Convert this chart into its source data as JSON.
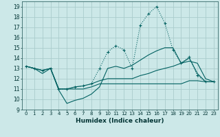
{
  "xlabel": "Humidex (Indice chaleur)",
  "background_color": "#cce8e8",
  "grid_color": "#aacccc",
  "line_color": "#006060",
  "xlim": [
    -0.5,
    23.5
  ],
  "ylim": [
    9,
    19.5
  ],
  "xticks": [
    0,
    1,
    2,
    3,
    4,
    5,
    6,
    7,
    8,
    9,
    10,
    11,
    12,
    13,
    14,
    15,
    16,
    17,
    18,
    19,
    20,
    21,
    22,
    23
  ],
  "yticks": [
    9,
    10,
    11,
    12,
    13,
    14,
    15,
    16,
    17,
    18,
    19
  ],
  "hours": [
    0,
    1,
    2,
    3,
    4,
    5,
    6,
    7,
    8,
    9,
    10,
    11,
    12,
    13,
    14,
    15,
    16,
    17,
    18,
    19,
    20,
    21,
    22,
    23
  ],
  "line_peak": [
    13.2,
    13.0,
    12.8,
    13.0,
    11.0,
    11.0,
    11.2,
    11.3,
    11.5,
    13.0,
    14.6,
    15.2,
    14.8,
    13.0,
    17.2,
    18.3,
    19.0,
    17.4,
    14.8,
    13.5,
    14.1,
    12.3,
    11.7,
    11.7
  ],
  "line_high": [
    13.2,
    13.0,
    12.8,
    13.0,
    10.9,
    9.6,
    9.9,
    10.1,
    10.5,
    11.2,
    13.0,
    13.2,
    13.0,
    13.3,
    13.8,
    14.3,
    14.7,
    15.0,
    15.0,
    13.5,
    14.0,
    12.5,
    11.7,
    11.7
  ],
  "line_low": [
    13.2,
    13.0,
    12.8,
    13.0,
    11.0,
    11.0,
    11.2,
    11.3,
    11.5,
    11.8,
    12.0,
    12.0,
    12.0,
    12.0,
    12.3,
    12.5,
    12.8,
    13.0,
    13.2,
    13.5,
    13.7,
    13.5,
    12.0,
    11.7
  ],
  "line_base": [
    13.2,
    13.0,
    12.5,
    13.0,
    11.0,
    11.0,
    11.0,
    11.0,
    11.2,
    11.5,
    11.5,
    11.5,
    11.5,
    11.5,
    11.5,
    11.5,
    11.5,
    11.5,
    11.5,
    11.5,
    11.8,
    11.8,
    11.7,
    11.7
  ]
}
